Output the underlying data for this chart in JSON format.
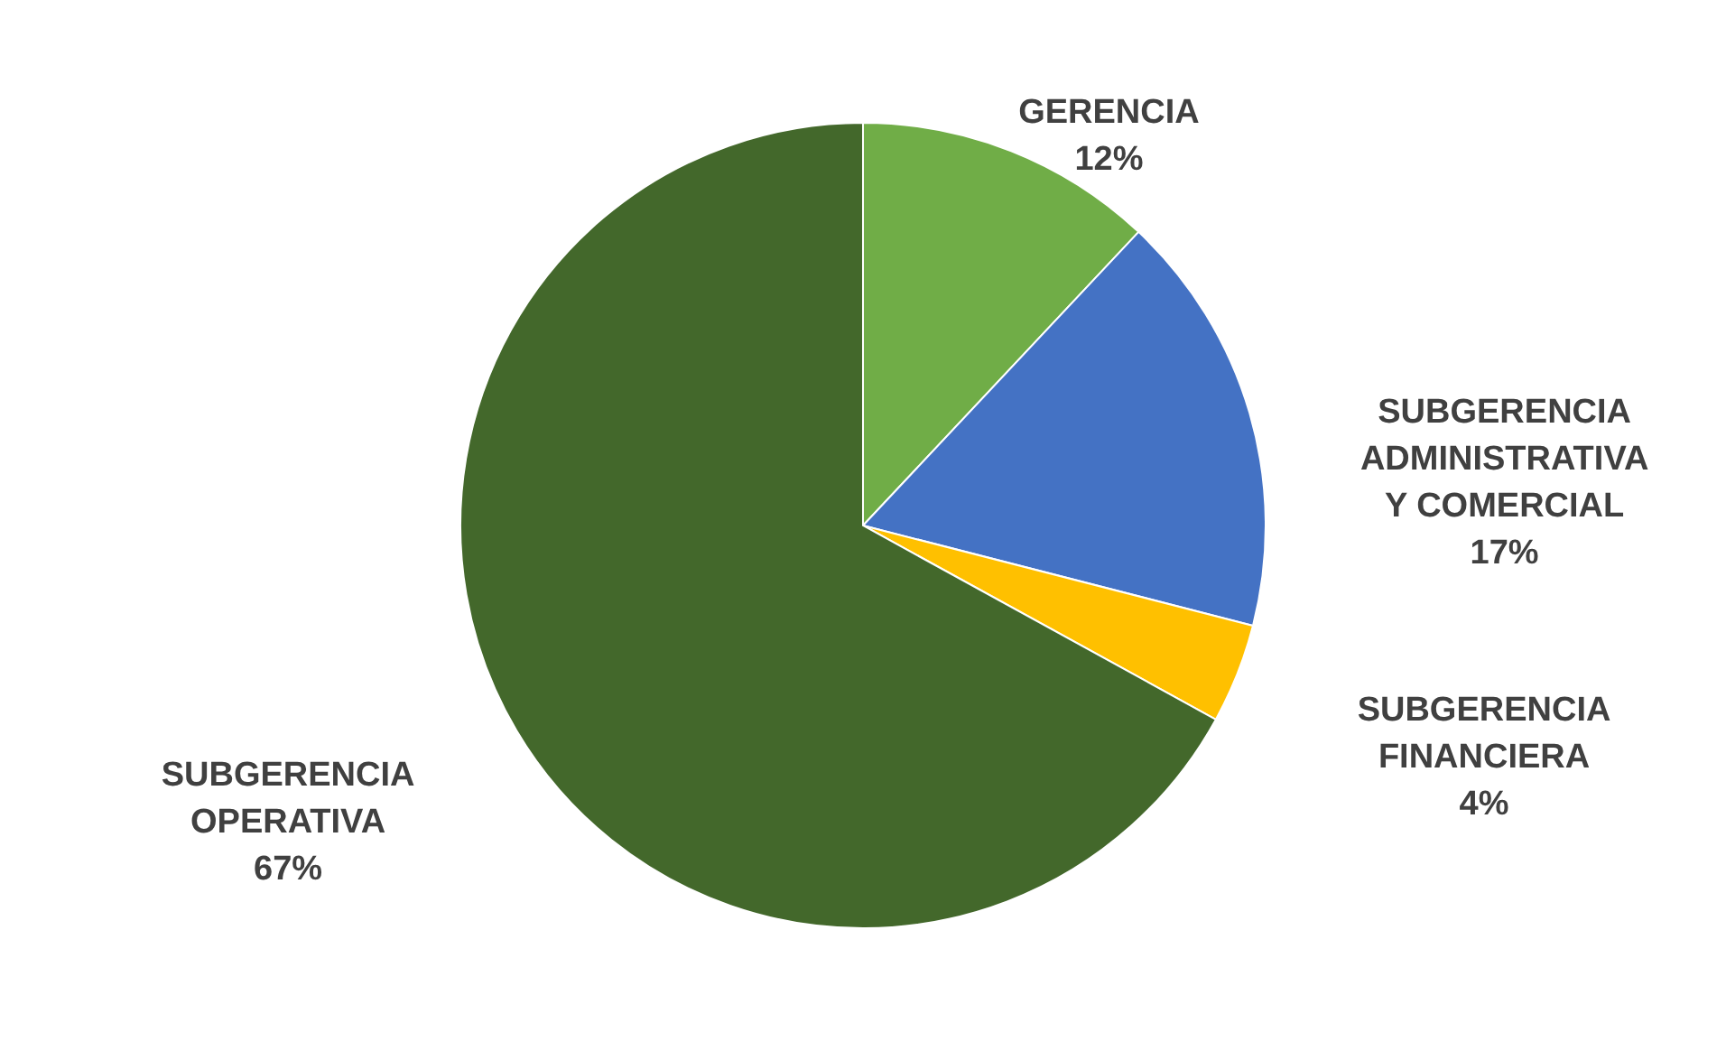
{
  "chart_data": {
    "type": "pie",
    "categories": [
      "GERENCIA",
      "SUBGERENCIA ADMINISTRATIVA Y COMERCIAL",
      "SUBGERENCIA FINANCIERA",
      "SUBGERENCIA OPERATIVA"
    ],
    "values": [
      12,
      17,
      4,
      67
    ],
    "colors": [
      "#70ad47",
      "#4472c4",
      "#ffc000",
      "#43682b"
    ],
    "value_labels": [
      "12%",
      "17%",
      "4%",
      "67%"
    ]
  }
}
